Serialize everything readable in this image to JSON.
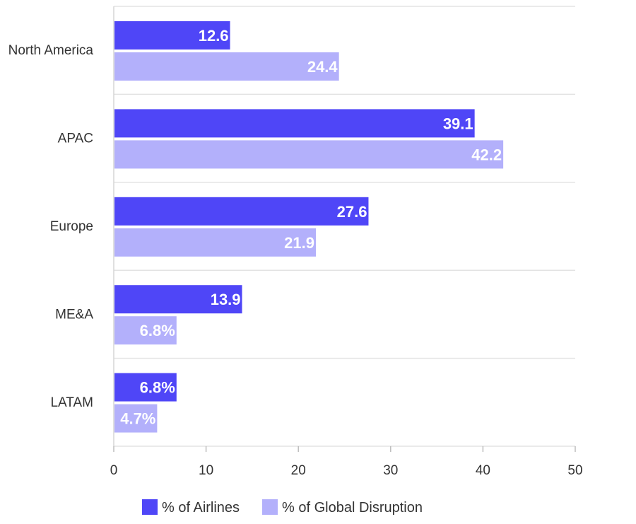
{
  "chart_data": {
    "type": "bar",
    "orientation": "horizontal",
    "categories": [
      "North America",
      "APAC",
      "Europe",
      "ME&A",
      "LATAM"
    ],
    "series": [
      {
        "name": "% of Airlines",
        "color": "#4f46f7",
        "values": [
          12.6,
          39.1,
          27.6,
          13.9,
          6.8
        ],
        "labels": [
          "12.6",
          "39.1",
          "27.6",
          "13.9",
          "6.8%"
        ]
      },
      {
        "name": "% of Global Disruption",
        "color": "#b3b0fb",
        "values": [
          24.4,
          42.2,
          21.9,
          6.8,
          4.7
        ],
        "labels": [
          "24.4",
          "42.2",
          "21.9",
          "6.8%",
          "4.7%"
        ]
      }
    ],
    "xlim": [
      0,
      50
    ],
    "xticks": [
      "0",
      "10",
      "20",
      "30",
      "40",
      "50"
    ],
    "grid": true,
    "legend_position": "bottom"
  }
}
